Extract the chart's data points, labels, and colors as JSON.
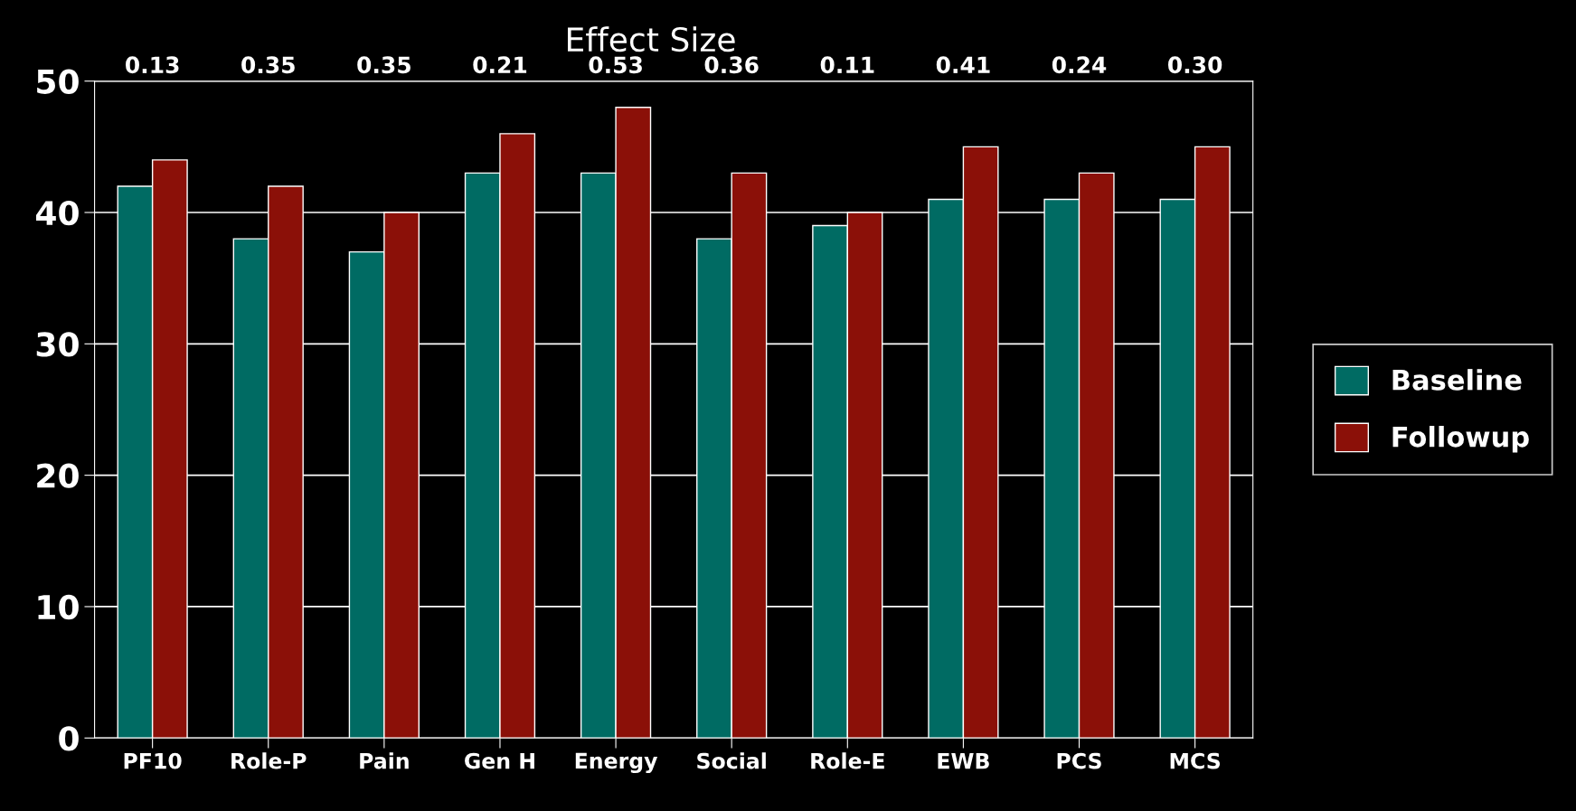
{
  "chart_data": {
    "type": "bar",
    "title": "Effect Size",
    "categories": [
      "PF10",
      "Role-P",
      "Pain",
      "Gen H",
      "Energy",
      "Social",
      "Role-E",
      "EWB",
      "PCS",
      "MCS"
    ],
    "series": [
      {
        "name": "Baseline",
        "color": "#006b63",
        "values": [
          42,
          38,
          37,
          43,
          43,
          38,
          39,
          41,
          41,
          41
        ]
      },
      {
        "name": "Followup",
        "color": "#8b1008",
        "values": [
          44,
          42,
          40,
          46,
          48,
          43,
          40,
          45,
          43,
          45
        ]
      }
    ],
    "annotations": [
      "0.13",
      "0.35",
      "0.35",
      "0.21",
      "0.53",
      "0.36",
      "0.11",
      "0.41",
      "0.24",
      "0.30"
    ],
    "ylim": [
      0,
      50
    ],
    "yticks": [
      0,
      10,
      20,
      30,
      40,
      50
    ],
    "grid": "y",
    "legend": "right"
  }
}
